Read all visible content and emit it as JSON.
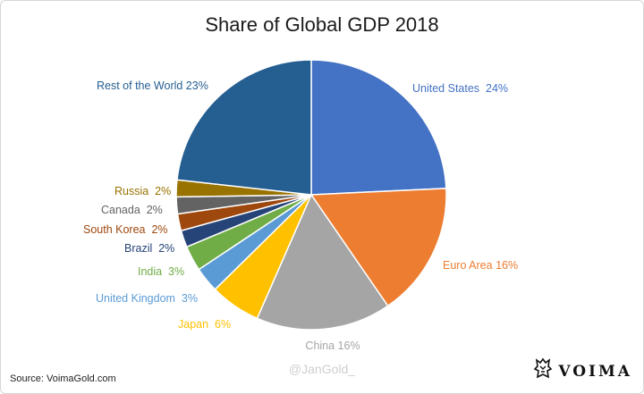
{
  "chart_data": {
    "type": "pie",
    "title": "Share of Global GDP 2018",
    "slices": [
      {
        "label": "United States",
        "value": 24,
        "display": "United States  24%",
        "color": "#4472C4"
      },
      {
        "label": "Euro Area",
        "value": 16,
        "display": "Euro Area 16%",
        "color": "#ED7D31"
      },
      {
        "label": "China",
        "value": 16,
        "display": "China 16%",
        "color": "#A5A5A5"
      },
      {
        "label": "Japan",
        "value": 6,
        "display": "Japan  6%",
        "color": "#FFC000"
      },
      {
        "label": "United Kingdom",
        "value": 3,
        "display": "United Kingdom  3%",
        "color": "#5B9BD5"
      },
      {
        "label": "India",
        "value": 3,
        "display": "India  3%",
        "color": "#70AD47"
      },
      {
        "label": "Brazil",
        "value": 2,
        "display": "Brazil  2%",
        "color": "#264478"
      },
      {
        "label": "South Korea",
        "value": 2,
        "display": "South Korea  2%",
        "color": "#9E480E"
      },
      {
        "label": "Canada",
        "value": 2,
        "display": "Canada  2%",
        "color": "#636363"
      },
      {
        "label": "Russia",
        "value": 2,
        "display": "Russia  2%",
        "color": "#997300"
      },
      {
        "label": "Rest of the World",
        "value": 23,
        "display": "Rest of the World 23%",
        "color": "#255E91"
      }
    ]
  },
  "footer": {
    "source": "Source: VoimaGold.com",
    "watermark": "@JanGold_",
    "logo_text": "VOIMA"
  }
}
